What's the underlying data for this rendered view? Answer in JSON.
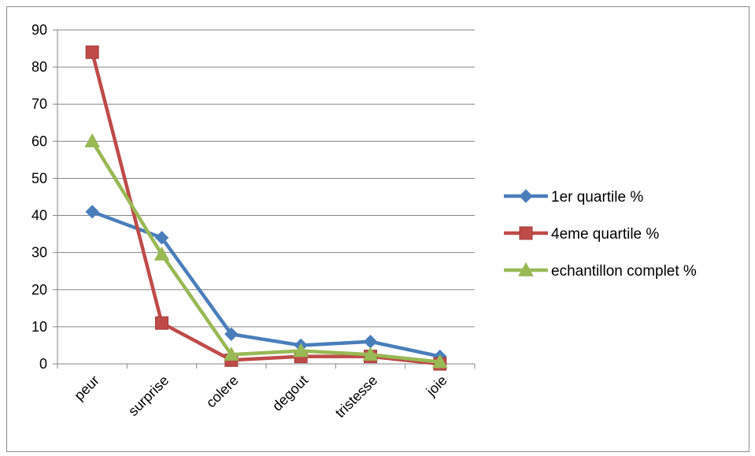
{
  "chart_data": {
    "type": "line",
    "title": "",
    "xlabel": "",
    "ylabel": "",
    "categories": [
      "peur",
      "surprise",
      "colere",
      "degout",
      "tristesse",
      "joie"
    ],
    "ylim": [
      0,
      90
    ],
    "yticks": [
      0,
      10,
      20,
      30,
      40,
      50,
      60,
      70,
      80,
      90
    ],
    "grid": true,
    "legend_position": "right",
    "series": [
      {
        "name": "1er quartile %",
        "values": [
          41,
          34,
          8,
          5,
          6,
          2
        ],
        "color": "#4a7ebb",
        "marker": "diamond"
      },
      {
        "name": "4eme quartile %",
        "values": [
          84,
          11,
          1,
          2,
          2,
          0
        ],
        "color": "#be4b48",
        "marker": "square"
      },
      {
        "name": "echantillon complet %",
        "values": [
          60,
          29.5,
          2.5,
          3.5,
          2.5,
          0.5
        ],
        "color": "#98b954",
        "marker": "triangle"
      }
    ]
  }
}
